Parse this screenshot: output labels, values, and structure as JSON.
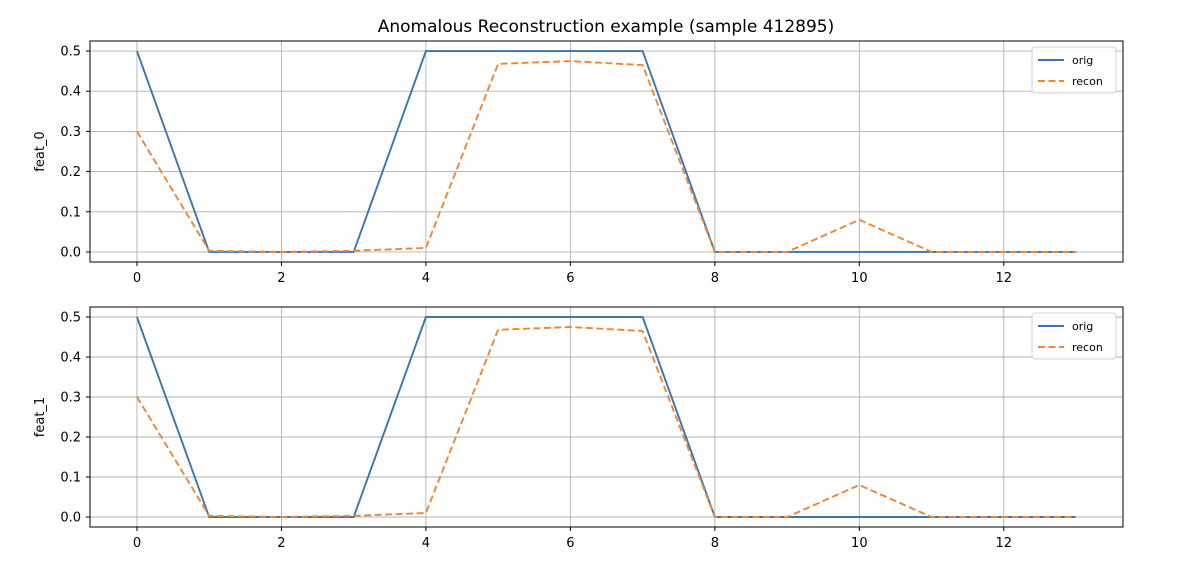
{
  "title": "Anomalous Reconstruction example (sample 412895)",
  "colors": {
    "orig": "#3b75af",
    "recon": "#ef8636",
    "grid": "#b0b0b0"
  },
  "chart_data": [
    {
      "type": "line",
      "ylabel": "feat_0",
      "xlim": [
        -0.65,
        13.65
      ],
      "ylim": [
        -0.025,
        0.525
      ],
      "xticks": [
        "0",
        "2",
        "4",
        "6",
        "8",
        "10",
        "12"
      ],
      "yticks": [
        "0.0",
        "0.1",
        "0.2",
        "0.3",
        "0.4",
        "0.5"
      ],
      "grid": true,
      "legend_position": "top-right",
      "x": [
        0,
        1,
        2,
        3,
        4,
        5,
        6,
        7,
        8,
        9,
        10,
        11,
        12,
        13
      ],
      "series": [
        {
          "name": "orig",
          "style": "solid",
          "values": [
            0.5,
            0.0,
            0.0,
            0.0,
            0.5,
            0.5,
            0.5,
            0.5,
            0.0,
            0.0,
            0.0,
            0.0,
            0.0,
            0.0
          ]
        },
        {
          "name": "recon",
          "style": "dashed",
          "values": [
            0.3,
            0.003,
            0.0,
            0.003,
            0.01,
            0.468,
            0.475,
            0.465,
            0.0,
            0.0,
            0.08,
            0.0,
            0.0,
            0.0
          ]
        }
      ]
    },
    {
      "type": "line",
      "ylabel": "feat_1",
      "xlim": [
        -0.65,
        13.65
      ],
      "ylim": [
        -0.025,
        0.525
      ],
      "xticks": [
        "0",
        "2",
        "4",
        "6",
        "8",
        "10",
        "12"
      ],
      "yticks": [
        "0.0",
        "0.1",
        "0.2",
        "0.3",
        "0.4",
        "0.5"
      ],
      "grid": true,
      "legend_position": "top-right",
      "x": [
        0,
        1,
        2,
        3,
        4,
        5,
        6,
        7,
        8,
        9,
        10,
        11,
        12,
        13
      ],
      "series": [
        {
          "name": "orig",
          "style": "solid",
          "values": [
            0.5,
            0.0,
            0.0,
            0.0,
            0.5,
            0.5,
            0.5,
            0.5,
            0.0,
            0.0,
            0.0,
            0.0,
            0.0,
            0.0
          ]
        },
        {
          "name": "recon",
          "style": "dashed",
          "values": [
            0.3,
            0.003,
            0.0,
            0.003,
            0.01,
            0.468,
            0.475,
            0.465,
            0.0,
            0.0,
            0.08,
            0.0,
            0.0,
            0.0
          ]
        }
      ]
    }
  ]
}
